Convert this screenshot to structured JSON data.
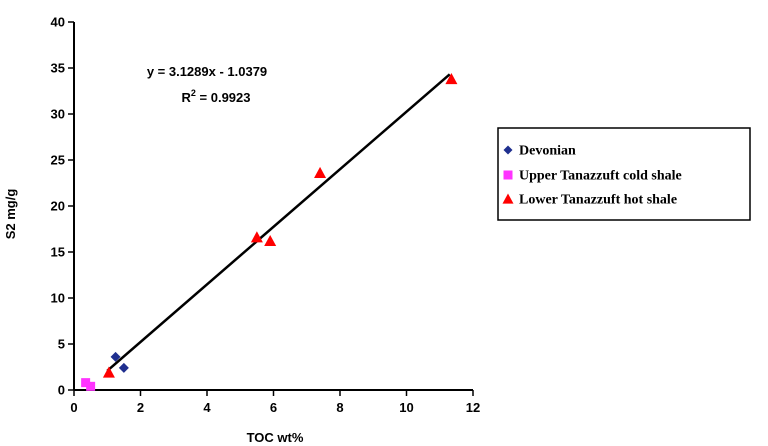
{
  "chart_data": {
    "type": "scatter",
    "title": "",
    "xlabel": "TOC wt%",
    "ylabel": "S2 mg/g",
    "xlim": [
      0,
      12
    ],
    "ylim": [
      0,
      40
    ],
    "x_ticks": [
      0,
      2,
      4,
      6,
      8,
      10,
      12
    ],
    "y_ticks": [
      0,
      5,
      10,
      15,
      20,
      25,
      30,
      35,
      40
    ],
    "grid": false,
    "legend_position": "right",
    "series": [
      {
        "name": "Devonian",
        "marker": "diamond",
        "color": "#1f2f8f",
        "points": [
          [
            1.25,
            3.6
          ],
          [
            1.5,
            2.4
          ]
        ]
      },
      {
        "name": "Upper Tanazzuft cold shale",
        "marker": "square",
        "color": "#ff33ff",
        "points": [
          [
            0.35,
            0.8
          ],
          [
            0.5,
            0.4
          ]
        ]
      },
      {
        "name": "Lower Tanazzuft hot shale",
        "marker": "triangle",
        "color": "#ff0000",
        "points": [
          [
            1.05,
            1.9
          ],
          [
            5.5,
            16.6
          ],
          [
            5.9,
            16.2
          ],
          [
            7.4,
            23.6
          ],
          [
            11.35,
            33.8
          ]
        ]
      }
    ],
    "trendline": {
      "slope": 3.1289,
      "intercept": -1.0379,
      "x_range": [
        1.0,
        11.3
      ],
      "color": "#000000",
      "equation_label": "y = 3.1289x - 1.0379",
      "r2_prefix": "R",
      "r2_sup": "2",
      "r2_value": " = 0.9923"
    }
  }
}
